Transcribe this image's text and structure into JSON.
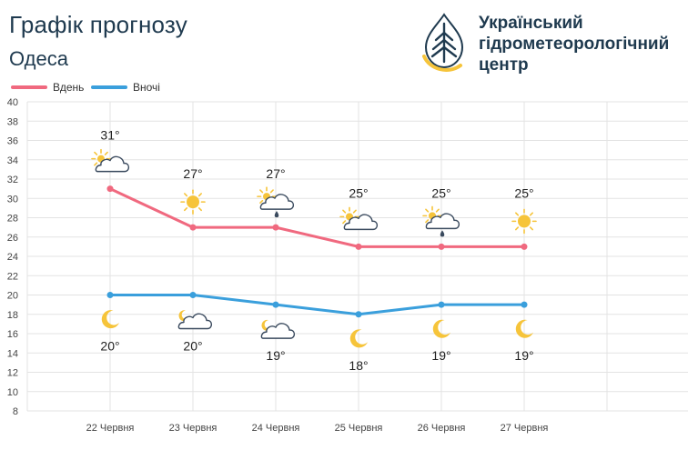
{
  "header": {
    "title": "Графік прогнозу",
    "subtitle": "Одеса",
    "logo_text": "Український\nгідрометеорологічний\nцентр"
  },
  "colors": {
    "day": "#f0697f",
    "night": "#3a9fdc",
    "text": "#1f3a4f",
    "grid": "#e3e3e3",
    "sun": "#f6c43a",
    "cloud_stroke": "#3a4a5e",
    "moon": "#f6c43a"
  },
  "chart_data": {
    "type": "line",
    "categories": [
      "22 Червня",
      "23 Червня",
      "24 Червня",
      "25 Червня",
      "26 Червня",
      "27 Червня"
    ],
    "ylim": [
      8,
      40
    ],
    "yticks": [
      8,
      10,
      12,
      14,
      16,
      18,
      20,
      22,
      24,
      26,
      28,
      30,
      32,
      34,
      36,
      38,
      40
    ],
    "grid": true,
    "legend": "top-left",
    "series": [
      {
        "name": "Вдень",
        "color": "#f0697f",
        "values": [
          31,
          27,
          27,
          25,
          25,
          25
        ],
        "labels": [
          "31°",
          "27°",
          "27°",
          "25°",
          "25°",
          "25°"
        ],
        "icons": [
          "sun-cloud-icon",
          "sun-icon",
          "sun-cloud-rain-icon",
          "sun-cloud-icon",
          "sun-cloud-rain-icon",
          "sun-icon"
        ]
      },
      {
        "name": "Вночі",
        "color": "#3a9fdc",
        "values": [
          20,
          20,
          19,
          18,
          19,
          19
        ],
        "labels": [
          "20°",
          "20°",
          "19°",
          "18°",
          "19°",
          "19°"
        ],
        "icons": [
          "moon-icon",
          "moon-cloud-icon",
          "moon-cloud-icon",
          "moon-icon",
          "moon-icon",
          "moon-icon"
        ]
      }
    ]
  }
}
